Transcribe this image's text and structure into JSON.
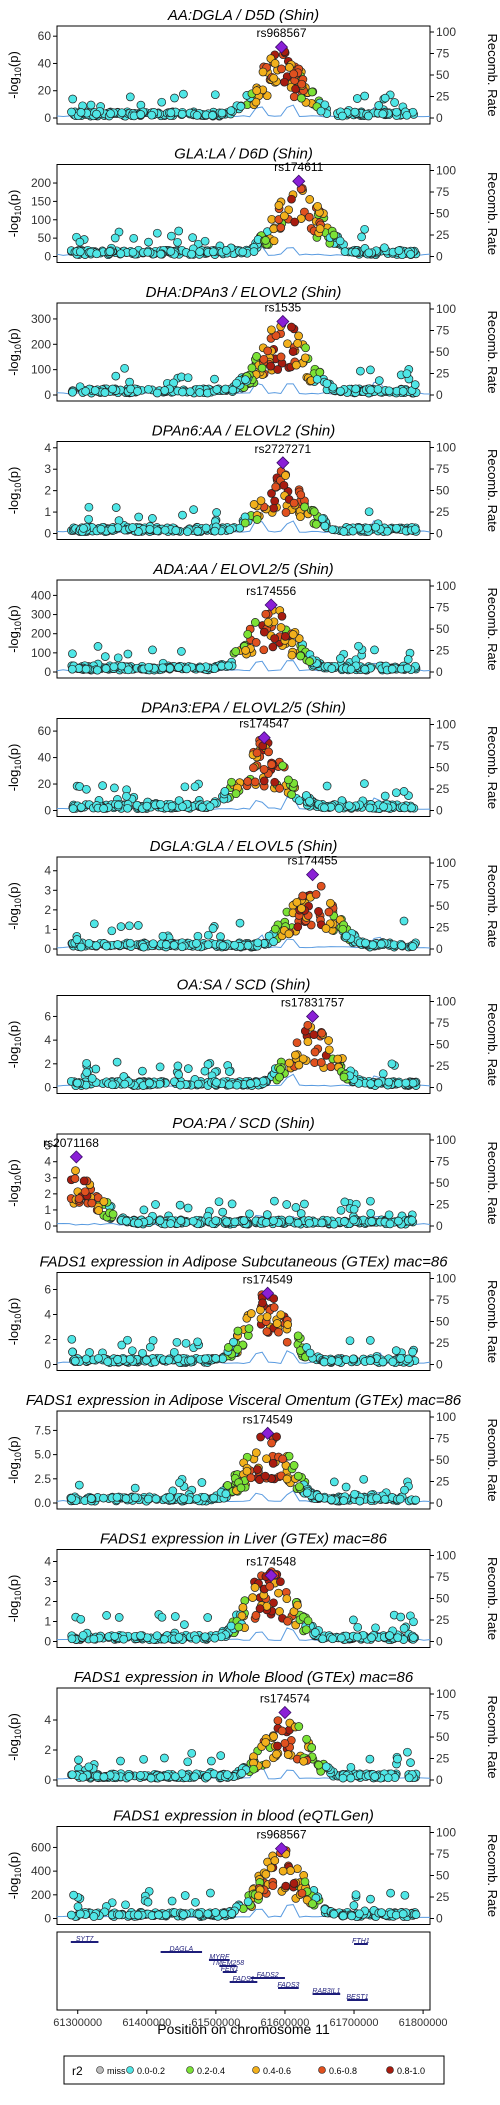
{
  "axis_labels": {
    "y_left_main": "-log",
    "y_left_sub": "10",
    "y_left_paren": "(p)",
    "y_right": "Recomb. Rate",
    "x": "Position on chromosome 11"
  },
  "recomb_ticks": [
    "0",
    "25",
    "50",
    "75",
    "100"
  ],
  "x_ticks": [
    "61300000",
    "61400000",
    "61500000",
    "61600000",
    "61700000",
    "61800000"
  ],
  "legend": {
    "title": "r2",
    "items": [
      {
        "label": "miss",
        "color": "#bdbdbd"
      },
      {
        "label": "0.0-0.2",
        "color": "#4fe6e6"
      },
      {
        "label": "0.2-0.4",
        "color": "#7be236"
      },
      {
        "label": "0.4-0.6",
        "color": "#f2b01c"
      },
      {
        "label": "0.6-0.8",
        "color": "#e0511f"
      },
      {
        "label": "0.8-1.0",
        "color": "#a81c10"
      }
    ]
  },
  "genes": [
    {
      "name": "SYT7"
    },
    {
      "name": "DAGLA"
    },
    {
      "name": "MYRF"
    },
    {
      "name": "TMEM258"
    },
    {
      "name": "FEN1"
    },
    {
      "name": "FADS2"
    },
    {
      "name": "FADS1"
    },
    {
      "name": "FADS3"
    },
    {
      "name": "RAB3IL1"
    },
    {
      "name": "FTH1"
    },
    {
      "name": "BEST1"
    }
  ],
  "chart_data": [
    {
      "type": "scatter",
      "title": "AA:DGLA / D5D (Shin)",
      "lead_snp": "rs968567",
      "lead_pos": 61595000,
      "lead_y": 52,
      "y_ticks": [
        0,
        20,
        40,
        60
      ],
      "ylim": [
        0,
        66
      ],
      "xlim": [
        61270000,
        61810000
      ],
      "peak_height": 48
    },
    {
      "type": "scatter",
      "title": "GLA:LA / D6D (Shin)",
      "lead_snp": "rs174611",
      "lead_pos": 61620000,
      "lead_y": 205,
      "y_ticks": [
        0,
        50,
        100,
        150,
        200
      ],
      "ylim": [
        0,
        245
      ],
      "xlim": [
        61270000,
        61810000
      ],
      "peak_height": 195
    },
    {
      "type": "scatter",
      "title": "DHA:DPAn3 / ELOVL2 (Shin)",
      "lead_snp": "rs1535",
      "lead_pos": 61597000,
      "lead_y": 290,
      "y_ticks": [
        0,
        100,
        200,
        300
      ],
      "ylim": [
        0,
        355
      ],
      "xlim": [
        61270000,
        61810000
      ],
      "peak_height": 280
    },
    {
      "type": "scatter",
      "title": "DPAn6:AA / ELOVL2 (Shin)",
      "lead_snp": "rs2727271",
      "lead_pos": 61597000,
      "lead_y": 3.3,
      "y_ticks": [
        0,
        1,
        2,
        3,
        4
      ],
      "ylim": [
        0,
        4.2
      ],
      "xlim": [
        61270000,
        61810000
      ],
      "peak_height": 2.8
    },
    {
      "type": "scatter",
      "title": "ADA:AA / ELOVL2/5 (Shin)",
      "lead_snp": "rs174556",
      "lead_pos": 61580000,
      "lead_y": 350,
      "y_ticks": [
        0,
        100,
        200,
        300,
        400
      ],
      "ylim": [
        0,
        470
      ],
      "xlim": [
        61270000,
        61810000
      ],
      "peak_height": 330
    },
    {
      "type": "scatter",
      "title": "DPAn3:EPA / ELOVL2/5 (Shin)",
      "lead_snp": "rs174547",
      "lead_pos": 61570000,
      "lead_y": 55,
      "y_ticks": [
        0,
        20,
        40,
        60
      ],
      "ylim": [
        0,
        68
      ],
      "xlim": [
        61270000,
        61810000
      ],
      "peak_height": 52
    },
    {
      "type": "scatter",
      "title": "DGLA:GLA / ELOVL5 (Shin)",
      "lead_snp": "rs174455",
      "lead_pos": 61640000,
      "lead_y": 3.8,
      "y_ticks": [
        0,
        1,
        2,
        3,
        4
      ],
      "ylim": [
        0,
        4.6
      ],
      "xlim": [
        61270000,
        61810000
      ],
      "peak_height": 3.3
    },
    {
      "type": "scatter",
      "title": "OA:SA / SCD (Shin)",
      "lead_snp": "rs17831757",
      "lead_pos": 61640000,
      "lead_y": 6.0,
      "y_ticks": [
        0,
        2,
        4,
        6
      ],
      "ylim": [
        0,
        7.6
      ],
      "xlim": [
        61270000,
        61810000
      ],
      "peak_height": 5.2
    },
    {
      "type": "scatter",
      "title": "POA:PA / SCD (Shin)",
      "lead_snp": "rs2071168",
      "lead_pos": 61298000,
      "lead_y": 4.3,
      "y_ticks": [
        0,
        1,
        2,
        3,
        4,
        5
      ],
      "ylim": [
        0,
        5.6
      ],
      "xlim": [
        61270000,
        61810000
      ],
      "peak_height": 3.4
    },
    {
      "type": "scatter",
      "title": "FADS1 expression in Adipose Subcutaneous (GTEx) mac=86",
      "lead_snp": "rs174549",
      "lead_pos": 61575000,
      "lead_y": 5.7,
      "y_ticks": [
        0,
        2,
        4,
        6
      ],
      "ylim": [
        0,
        7.2
      ],
      "xlim": [
        61270000,
        61810000
      ],
      "peak_height": 5.5
    },
    {
      "type": "scatter",
      "title": "FADS1 expression in Adipose Visceral Omentum (GTEx) mac=86",
      "lead_snp": "rs174549",
      "lead_pos": 61575000,
      "lead_y": 7.2,
      "y_ticks": [
        0,
        2.5,
        5.0,
        7.5
      ],
      "ylim": [
        0,
        9.3
      ],
      "xlim": [
        61270000,
        61810000
      ],
      "peak_height": 7.0
    },
    {
      "type": "scatter",
      "title": "FADS1 expression in Liver (GTEx) mac=86",
      "lead_snp": "rs174548",
      "lead_pos": 61580000,
      "lead_y": 3.3,
      "y_ticks": [
        0,
        1,
        2,
        3,
        4
      ],
      "ylim": [
        0,
        4.5
      ],
      "xlim": [
        61270000,
        61810000
      ],
      "peak_height": 3.6
    },
    {
      "type": "scatter",
      "title": "FADS1 expression in Whole Blood (GTEx) mac=86",
      "lead_snp": "rs174574",
      "lead_pos": 61600000,
      "lead_y": 4.5,
      "y_ticks": [
        0,
        2,
        4
      ],
      "ylim": [
        0,
        6.0
      ],
      "xlim": [
        61270000,
        61810000
      ],
      "peak_height": 4.0
    },
    {
      "type": "scatter",
      "title": "FADS1 expression in blood (eQTLGen)",
      "lead_snp": "rs968567",
      "lead_pos": 61595000,
      "lead_y": 590,
      "y_ticks": [
        0,
        200,
        400,
        600
      ],
      "ylim": [
        0,
        760
      ],
      "xlim": [
        61270000,
        61810000
      ],
      "peak_height": 560
    }
  ]
}
